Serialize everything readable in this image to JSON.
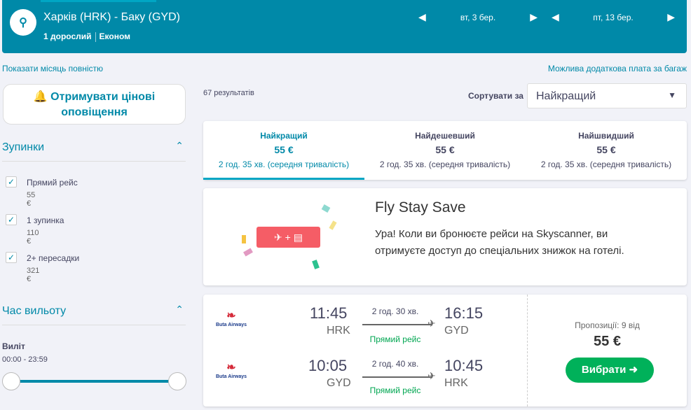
{
  "header": {
    "route": "Харків (HRK) - Баку (GYD)",
    "passengers": "1 дорослий",
    "cabin": "Економ",
    "depart_date": "вт, 3 бер.",
    "return_date": "пт, 13 бер."
  },
  "links": {
    "show_month": "Показати місяць повністю",
    "baggage": "Можлива додаткова плата за багаж"
  },
  "sidebar": {
    "alerts": "Отримувати цінові оповіщення",
    "stops_title": "Зупинки",
    "stops": [
      {
        "label": "Прямий рейс",
        "price": "55 €"
      },
      {
        "label": "1 зупинка",
        "price": "110 €"
      },
      {
        "label": "2+ пересадки",
        "price": "321 €"
      }
    ],
    "time_title": "Час вильоту",
    "depart_label": "Виліт",
    "time_range": "00:00 - 23:59"
  },
  "results": {
    "count": "67 результатів",
    "sort_label": "Сортувати за",
    "sort_value": "Найкращий"
  },
  "sort_tabs": [
    {
      "title": "Найкращий",
      "price": "55 €",
      "duration": "2 год. 35 хв. (середня тривалість)"
    },
    {
      "title": "Найдешевший",
      "price": "55 €",
      "duration": "2 год. 35 хв. (середня тривалість)"
    },
    {
      "title": "Найшвидший",
      "price": "55 €",
      "duration": "2 год. 35 хв. (середня тривалість)"
    }
  ],
  "promo": {
    "title": "Fly Stay Save",
    "text": "Ура! Коли ви бронюєте рейси на Skyscanner, ви отримуєте доступ до спеціальних знижок на готелі.",
    "plus": "+"
  },
  "flight": {
    "airline": "Buta Airways",
    "legs": [
      {
        "dep": "11:45",
        "from": "HRK",
        "arr": "16:15",
        "to": "GYD",
        "duration": "2 год. 30 хв.",
        "stops": "Прямий рейс"
      },
      {
        "dep": "10:05",
        "from": "GYD",
        "arr": "10:45",
        "to": "HRK",
        "duration": "2 год. 40 хв.",
        "stops": "Прямий рейс"
      }
    ],
    "offers": "Пропозиції: 9 від",
    "price": "55 €",
    "select": "Вибрати"
  }
}
